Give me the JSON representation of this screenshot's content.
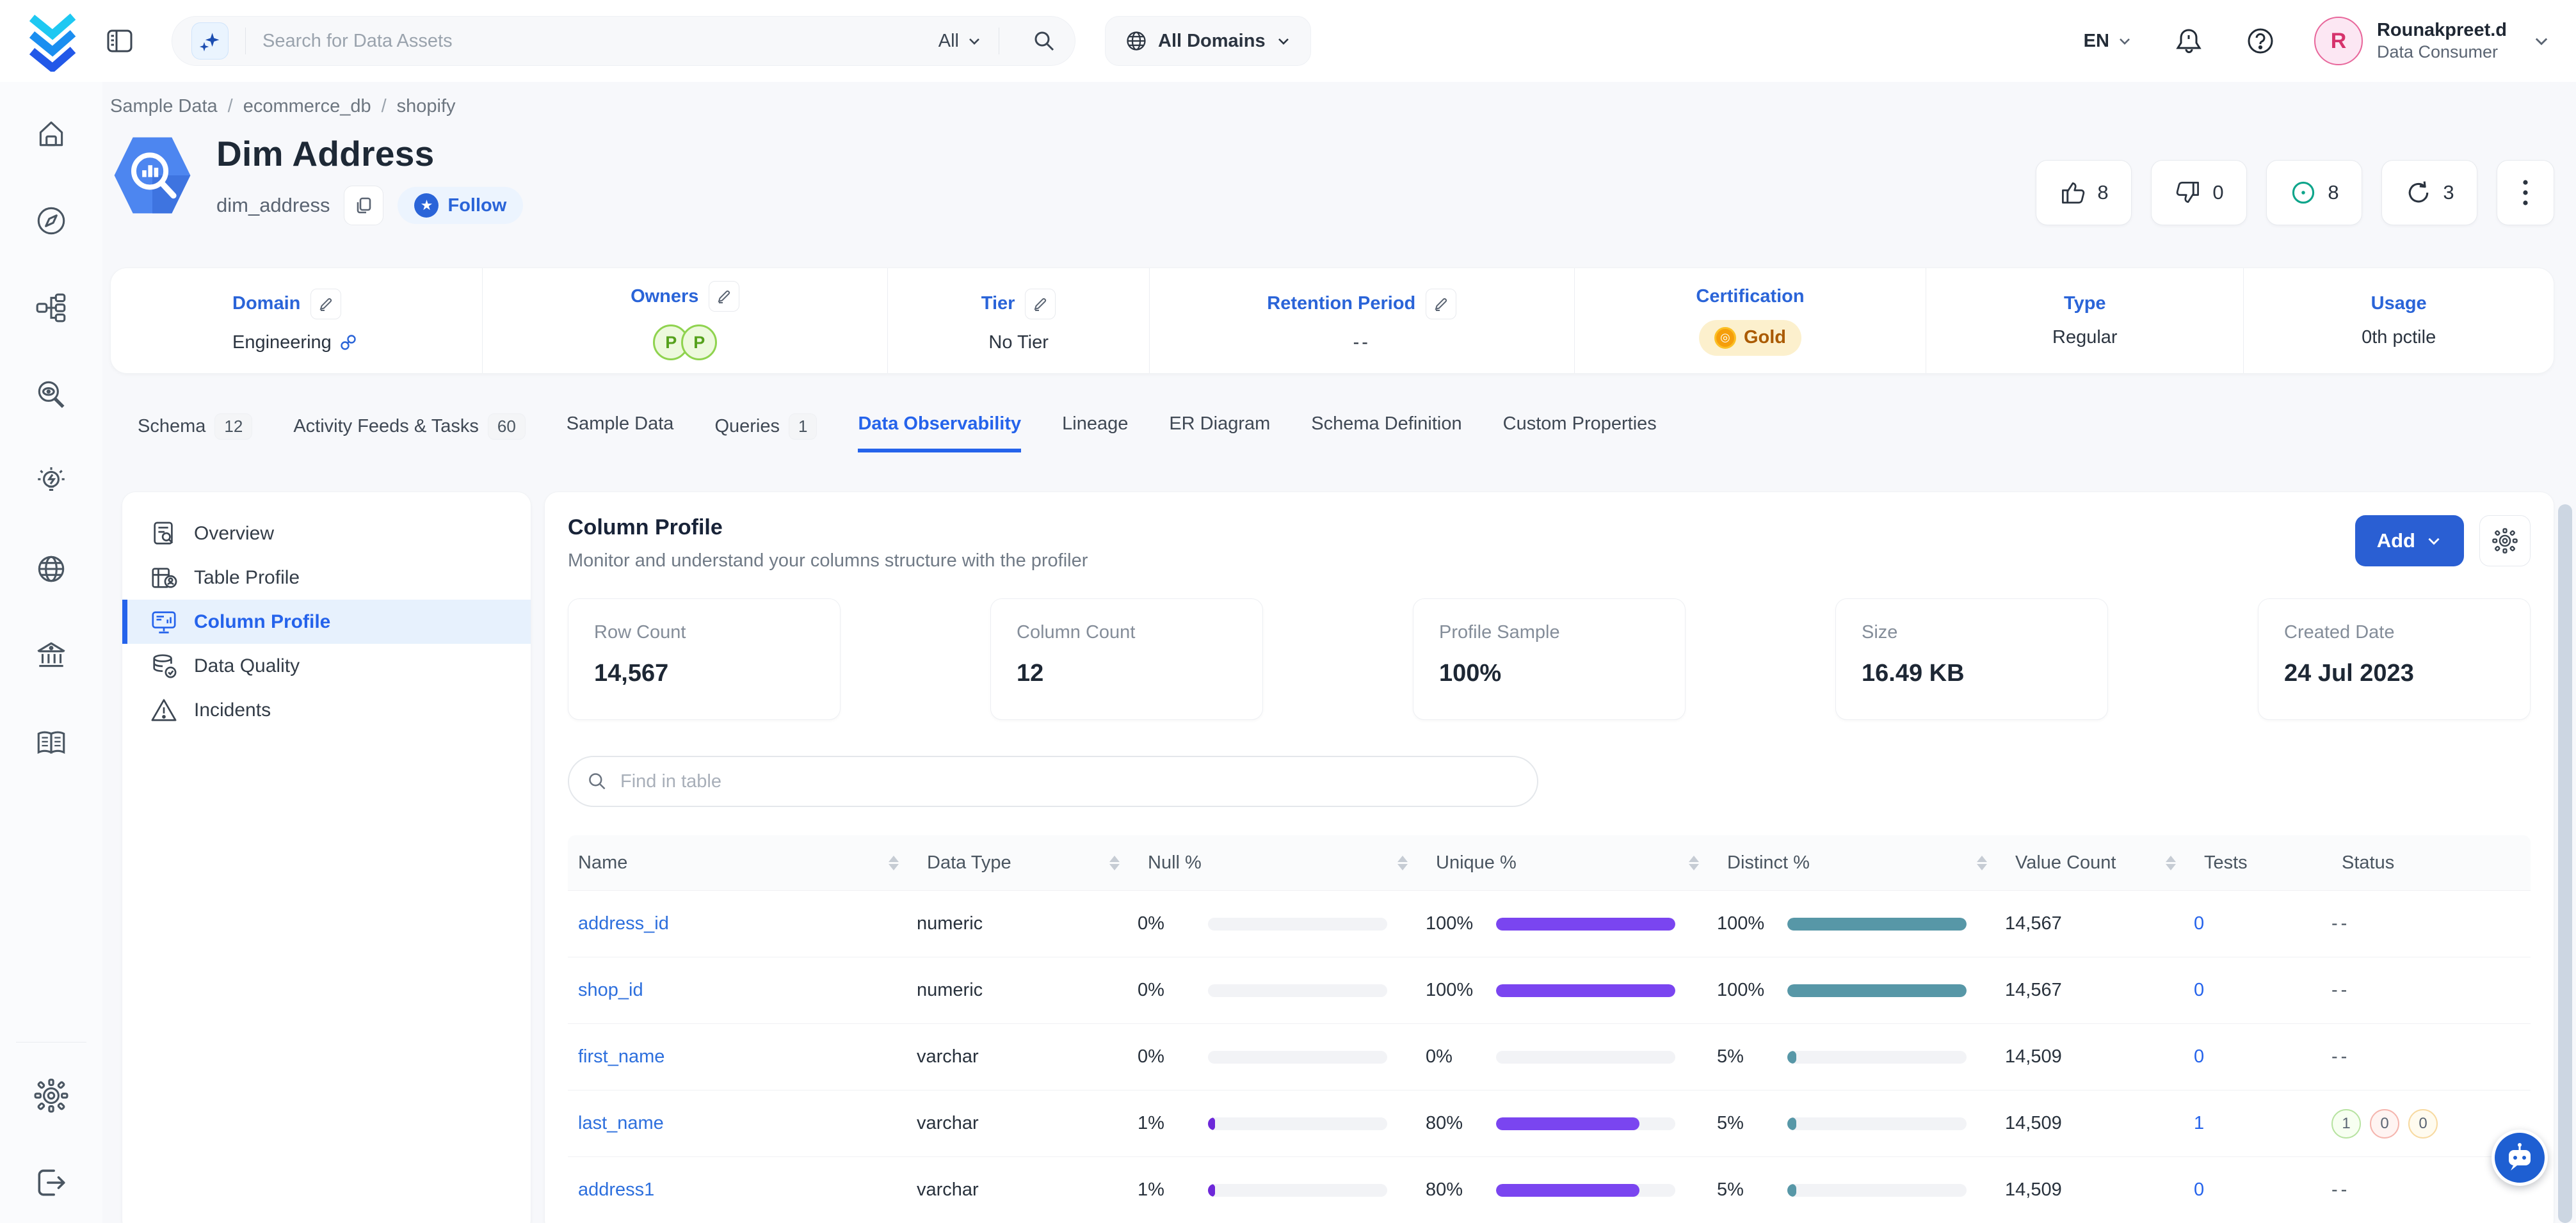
{
  "colors": {
    "accent": "#2563eb",
    "link": "#2d6fdd",
    "purple": "#7a45f0",
    "teal": "#5797a7",
    "gold_bg": "#fcf0cd",
    "gold_text": "#aa5a00",
    "active_bg": "#e7f1fd"
  },
  "topbar": {
    "search_placeholder": "Search for Data Assets",
    "scope": "All",
    "domains_label": "All Domains",
    "language": "EN",
    "user": {
      "name": "Rounakpreet.d",
      "role": "Data Consumer",
      "initial": "R"
    }
  },
  "breadcrumb": {
    "separator": "/",
    "items": [
      "Sample Data",
      "ecommerce_db",
      "shopify"
    ]
  },
  "entity": {
    "title": "Dim Address",
    "name": "dim_address",
    "follow_label": "Follow",
    "follow_star": "★",
    "likes": "8",
    "dislikes": "0",
    "watches": "8",
    "versions": "3"
  },
  "metadata": {
    "domain": {
      "label": "Domain",
      "value": "Engineering"
    },
    "owners": {
      "label": "Owners",
      "avatars": [
        "P",
        "P"
      ]
    },
    "tier": {
      "label": "Tier",
      "value": "No Tier"
    },
    "retention": {
      "label": "Retention Period",
      "value": "--"
    },
    "certification": {
      "label": "Certification",
      "value": "Gold"
    },
    "type": {
      "label": "Type",
      "value": "Regular"
    },
    "usage": {
      "label": "Usage",
      "value": "0th pctile"
    }
  },
  "tabs": {
    "t0": {
      "label": "Schema",
      "count": "12"
    },
    "t1": {
      "label": "Activity Feeds & Tasks",
      "count": "60"
    },
    "t2": {
      "label": "Sample Data"
    },
    "t3": {
      "label": "Queries",
      "count": "1"
    },
    "t4": {
      "label": "Data Observability"
    },
    "t5": {
      "label": "Lineage"
    },
    "t6": {
      "label": "ER Diagram"
    },
    "t7": {
      "label": "Schema Definition"
    },
    "t8": {
      "label": "Custom Properties"
    }
  },
  "profile_nav": {
    "overview": "Overview",
    "table_profile": "Table Profile",
    "column_profile": "Column Profile",
    "data_quality": "Data Quality",
    "incidents": "Incidents"
  },
  "panel": {
    "title": "Column Profile",
    "subtitle": "Monitor and understand your columns structure with the profiler",
    "add_label": "Add",
    "find_placeholder": "Find in table"
  },
  "summary": {
    "c0": {
      "label": "Row Count",
      "value": "14,567"
    },
    "c1": {
      "label": "Column Count",
      "value": "12"
    },
    "c2": {
      "label": "Profile Sample",
      "value": "100%"
    },
    "c3": {
      "label": "Size",
      "value": "16.49 KB"
    },
    "c4": {
      "label": "Created Date",
      "value": "24 Jul 2023"
    }
  },
  "table": {
    "columns": [
      "Name",
      "Data Type",
      "Null %",
      "Unique %",
      "Distinct %",
      "Value Count",
      "Tests",
      "Status"
    ],
    "rows": [
      {
        "name": "address_id",
        "type": "numeric",
        "null": 0,
        "null_label": "0%",
        "unique": 100,
        "unique_label": "100%",
        "distinct": 100,
        "distinct_label": "100%",
        "values": "14,567",
        "tests": "0",
        "status": "--"
      },
      {
        "name": "shop_id",
        "type": "numeric",
        "null": 0,
        "null_label": "0%",
        "unique": 100,
        "unique_label": "100%",
        "distinct": 100,
        "distinct_label": "100%",
        "values": "14,567",
        "tests": "0",
        "status": "--"
      },
      {
        "name": "first_name",
        "type": "varchar",
        "null": 0,
        "null_label": "0%",
        "unique": 0,
        "unique_label": "0%",
        "distinct": 5,
        "distinct_label": "5%",
        "values": "14,509",
        "tests": "0",
        "status": "--"
      },
      {
        "name": "last_name",
        "type": "varchar",
        "null": 1,
        "null_label": "1%",
        "unique": 80,
        "unique_label": "80%",
        "distinct": 5,
        "distinct_label": "5%",
        "values": "14,509",
        "tests": "1",
        "badges": {
          "passed": "1",
          "failed": "0",
          "aborted": "0"
        }
      },
      {
        "name": "address1",
        "type": "varchar",
        "null": 1,
        "null_label": "1%",
        "unique": 80,
        "unique_label": "80%",
        "distinct": 5,
        "distinct_label": "5%",
        "values": "14,509",
        "tests": "0",
        "status": "--"
      }
    ]
  }
}
